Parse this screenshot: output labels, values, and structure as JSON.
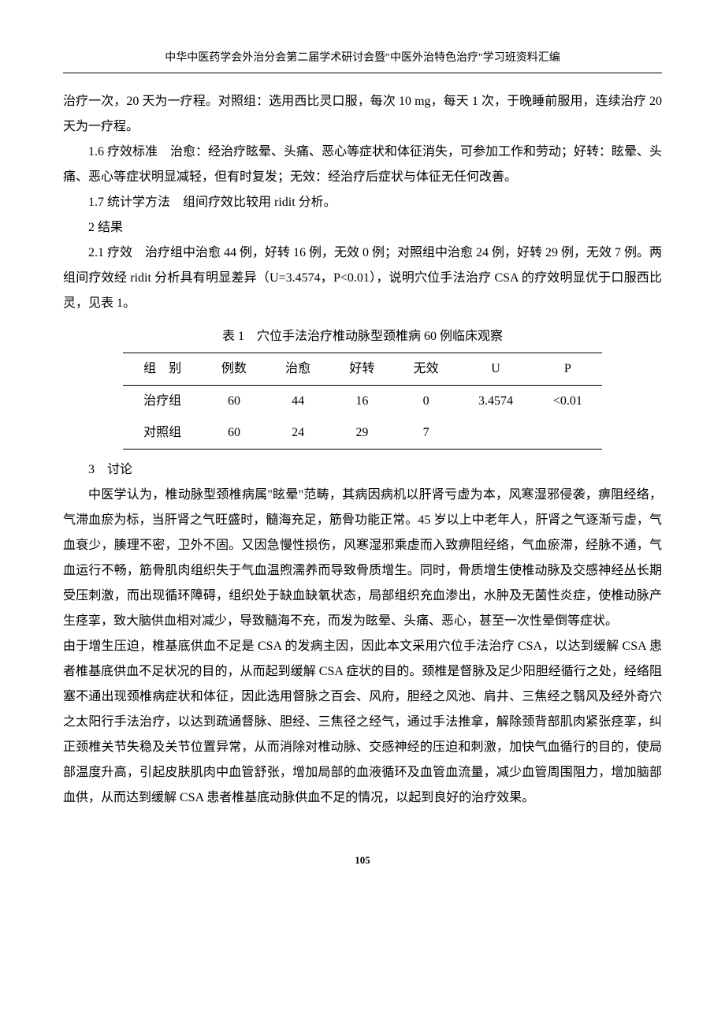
{
  "header": "中华中医药学会外治分会第二届学术研讨会暨\"中医外治特色治疗\"学习班资料汇编",
  "para1": "治疗一次，20 天为一疗程。对照组：选用西比灵口服，每次 10 mg，每天 1 次，于晚睡前服用，连续治疗 20 天为一疗程。",
  "para2": "1.6 疗效标准　治愈：经治疗眩晕、头痛、恶心等症状和体征消失，可参加工作和劳动；好转：眩晕、头痛、恶心等症状明显减轻，但有时复发；无效：经治疗后症状与体征无任何改善。",
  "para3": "1.7 统计学方法　组间疗效比较用 ridit 分析。",
  "section2": "2 结果",
  "para4": "2.1 疗效　治疗组中治愈 44 例，好转 16 例，无效 0 例；对照组中治愈 24 例，好转 29 例，无效 7 例。两组间疗效经 ridit 分析具有明显差异（U=3.4574，P<0.01），说明穴位手法治疗 CSA 的疗效明显优于口服西比灵，见表 1。",
  "table": {
    "title": "表 1　穴位手法治疗椎动脉型颈椎病 60 例临床观察",
    "cols": [
      "组　别",
      "例数",
      "治愈",
      "好转",
      "无效",
      "U",
      "P"
    ],
    "rows": [
      [
        "治疗组",
        "60",
        "44",
        "16",
        "0",
        "3.4574",
        "<0.01"
      ],
      [
        "对照组",
        "60",
        "24",
        "29",
        "7",
        "",
        ""
      ]
    ]
  },
  "section3": "3　讨论",
  "para5": "中医学认为，椎动脉型颈椎病属\"眩晕\"范畴，其病因病机以肝肾亏虚为本，风寒湿邪侵袭，痹阻经络，气滞血瘀为标，当肝肾之气旺盛时，髓海充足，筋骨功能正常。45 岁以上中老年人，肝肾之气逐渐亏虚，气血衰少，腠理不密，卫外不固。又因急慢性损伤，风寒湿邪乘虚而入致痹阻经络，气血瘀滞，经脉不通，气血运行不畅，筋骨肌肉组织失于气血温煦濡养而导致骨质增生。同时，骨质增生使椎动脉及交感神经丛长期受压刺激，而出现循环障碍，组织处于缺血缺氧状态，局部组织充血渗出，水肿及无菌性炎症，使椎动脉产生痉挛，致大脑供血相对减少，导致髓海不充，而发为眩晕、头痛、恶心，甚至一次性晕倒等症状。",
  "para6": "由于增生压迫，椎基底供血不足是 CSA 的发病主因，因此本文采用穴位手法治疗 CSA，以达到缓解 CSA 患者椎基底供血不足状况的目的，从而起到缓解 CSA 症状的目的。颈椎是督脉及足少阳胆经循行之处，经络阻塞不通出现颈椎病症状和体征，因此选用督脉之百会、风府，胆经之风池、肩井、三焦经之翳风及经外奇穴之太阳行手法治疗，以达到疏通督脉、胆经、三焦径之经气，通过手法推拿，解除颈背部肌肉紧张痉挛，纠正颈椎关节失稳及关节位置异常，从而消除对椎动脉、交感神经的压迫和刺激，加快气血循行的目的，使局部温度升高，引起皮肤肌肉中血管舒张，增加局部的血液循环及血管血流量，减少血管周围阻力，增加脑部血供，从而达到缓解 CSA 患者椎基底动脉供血不足的情况，以起到良好的治疗效果。",
  "pageNum": "105"
}
